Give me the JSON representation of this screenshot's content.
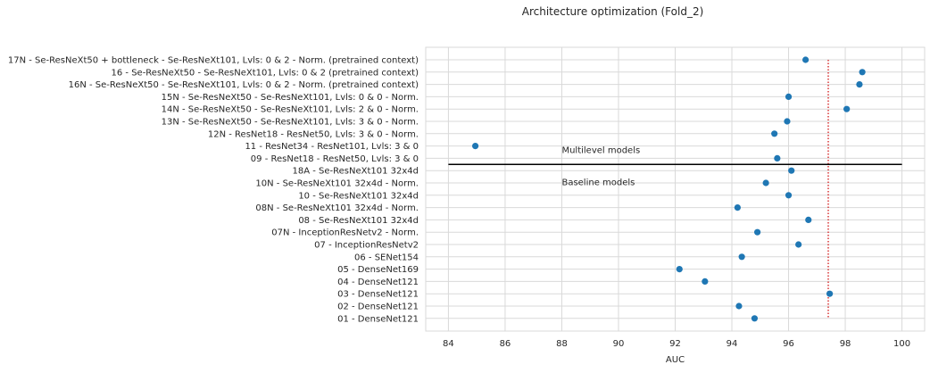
{
  "chart_data": {
    "type": "scatter",
    "title": "Architecture optimization (Fold_2)",
    "xlabel": "AUC",
    "ylabel": "",
    "xlim": [
      83.2,
      100.8
    ],
    "xticks": [
      "84",
      "86",
      "88",
      "90",
      "92",
      "94",
      "96",
      "98",
      "100"
    ],
    "grid": true,
    "categories": [
      "17N - Se-ResNeXt50 + bottleneck - Se-ResNeXt101, Lvls: 0 & 2  - Norm. (pretrained context)",
      "16 - Se-ResNeXt50 - Se-ResNeXt101, Lvls: 0 & 2  (pretrained context)",
      "16N - Se-ResNeXt50 - Se-ResNeXt101, Lvls: 0 & 2  - Norm. (pretrained context)",
      "15N - Se-ResNeXt50 - Se-ResNeXt101, Lvls: 0 & 0  - Norm.",
      "14N - Se-ResNeXt50 - Se-ResNeXt101, Lvls: 2 & 0  - Norm.",
      "13N - Se-ResNeXt50 - Se-ResNeXt101, Lvls: 3 & 0  - Norm.",
      "12N - ResNet18 - ResNet50, Lvls: 3 & 0  - Norm.",
      "11 - ResNet34 - ResNet101, Lvls: 3 & 0",
      "09 - ResNet18 - ResNet50, Lvls: 3 & 0",
      "18A - Se-ResNeXt101 32x4d",
      "10N - Se-ResNeXt101 32x4d - Norm.",
      "10 - Se-ResNeXt101 32x4d",
      "08N - Se-ResNeXt101 32x4d - Norm.",
      "08 - Se-ResNeXt101 32x4d",
      "07N - InceptionResNetv2 - Norm.",
      "07 - InceptionResNetv2",
      "06 - SENet154",
      "05 - DenseNet169",
      "04 - DenseNet121",
      "03 - DenseNet121",
      "02 - DenseNet121",
      "01 - DenseNet121"
    ],
    "values": [
      96.6,
      98.6,
      98.5,
      96.0,
      98.05,
      95.95,
      95.5,
      84.95,
      95.6,
      96.1,
      95.2,
      96.0,
      94.2,
      96.7,
      94.9,
      96.35,
      94.35,
      92.15,
      93.05,
      97.45,
      94.25,
      94.8
    ],
    "reference_line": {
      "x": 97.4,
      "style": "dotted",
      "color": "#d62728"
    },
    "divider": {
      "between": [
        "09 - ResNet18 - ResNet50, Lvls: 3 & 0",
        "18A - Se-ResNeXt101 32x4d"
      ],
      "x_range": [
        84,
        100
      ]
    },
    "annotations": [
      {
        "text": "Multilevel models",
        "x": 88,
        "group": "above-divider"
      },
      {
        "text": "Baseline models",
        "x": 88,
        "group": "below-divider"
      }
    ],
    "colors": {
      "points": "#1f77b4",
      "grid": "#d9d9d9",
      "divider": "#000000"
    }
  }
}
